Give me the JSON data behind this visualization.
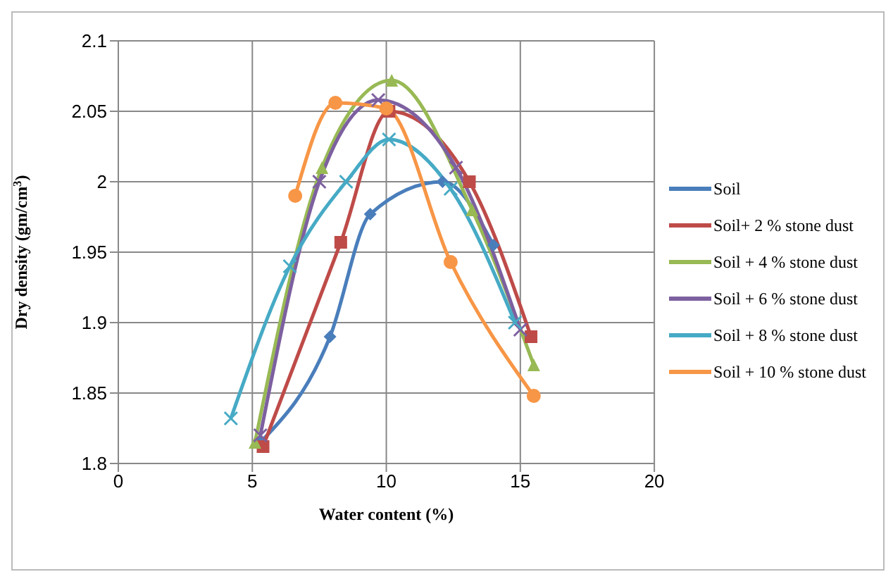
{
  "chart_data": {
    "type": "line",
    "xlabel": "Water content (%)",
    "ylabel": "Dry density (gm/cm$^{3}$)",
    "xlim": [
      0,
      20
    ],
    "xticks": [
      0,
      5,
      10,
      15,
      20
    ],
    "ylim": [
      1.8,
      2.1
    ],
    "yticks": [
      1.8,
      1.85,
      1.9,
      1.95,
      2,
      2.05,
      2.1
    ],
    "grid": true,
    "legend": "right",
    "series": [
      {
        "name": "Soil",
        "color": "#4a7ebb",
        "marker": "diamond",
        "x": [
          5.3,
          7.9,
          9.4,
          12.1,
          14
        ],
        "values": [
          1.815,
          1.89,
          1.977,
          2.0,
          1.955
        ]
      },
      {
        "name": "Soil+ 2 % stone dust",
        "color": "#be4b48",
        "marker": "square",
        "x": [
          5.4,
          8.3,
          10.1,
          13.1,
          15.4
        ],
        "values": [
          1.812,
          1.957,
          2.05,
          2.0,
          1.89
        ]
      },
      {
        "name": "Soil + 4 % stone dust",
        "color": "#98b954",
        "marker": "triangle",
        "x": [
          5.1,
          7.6,
          10.2,
          13.2,
          15.5
        ],
        "values": [
          1.815,
          2.01,
          2.072,
          1.98,
          1.87
        ]
      },
      {
        "name": "Soil + 6 % stone dust",
        "color": "#7d60a0",
        "marker": "cross",
        "x": [
          5.3,
          7.5,
          9.7,
          12.6,
          15
        ],
        "values": [
          1.82,
          2.0,
          2.058,
          2.01,
          1.895
        ]
      },
      {
        "name": "Soil + 8 % stone dust",
        "color": "#46aac5",
        "marker": "cross",
        "x": [
          4.2,
          6.4,
          8.5,
          10.1,
          12.4,
          14.8
        ],
        "values": [
          1.832,
          1.94,
          2.0,
          2.03,
          1.995,
          1.9
        ]
      },
      {
        "name": "Soil + 10 % stone dust",
        "color": "#f79646",
        "marker": "circle",
        "x": [
          6.6,
          8.1,
          10,
          12.4,
          15.5
        ],
        "values": [
          1.99,
          2.056,
          2.052,
          1.943,
          1.848
        ]
      }
    ]
  }
}
